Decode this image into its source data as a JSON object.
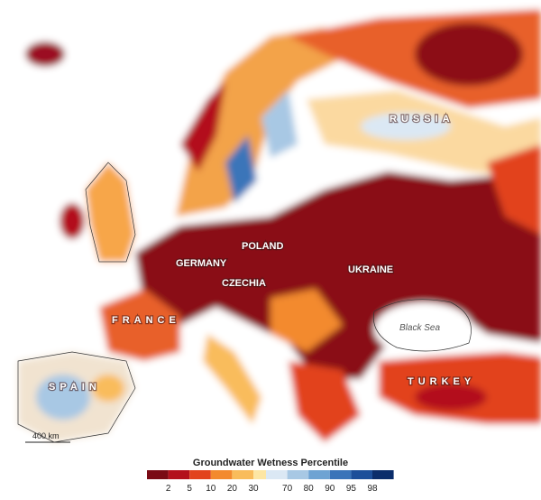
{
  "map": {
    "labels": {
      "russia": "RUSSIA",
      "poland": "POLAND",
      "germany": "GERMANY",
      "czechia": "CZECHIA",
      "ukraine": "UKRAINE",
      "france": "FRANCE",
      "black_sea": "Black Sea",
      "spain": "SPAIN",
      "turkey": "TURKEY"
    },
    "scale_bar": "400 km"
  },
  "legend": {
    "title": "Groundwater Wetness Percentile",
    "dry_ticks": [
      2,
      5,
      10,
      20,
      30
    ],
    "wet_ticks": [
      70,
      80,
      90,
      95,
      98
    ],
    "dry_colors": [
      "#7a0a14",
      "#b3111c",
      "#e2431d",
      "#f38a2e",
      "#f9bc5b",
      "#fde6a3"
    ],
    "wet_colors": [
      "#dbe8f4",
      "#a8c8e4",
      "#6ea3d3",
      "#3a74b9",
      "#1d4f9a",
      "#0b2d6b"
    ]
  }
}
